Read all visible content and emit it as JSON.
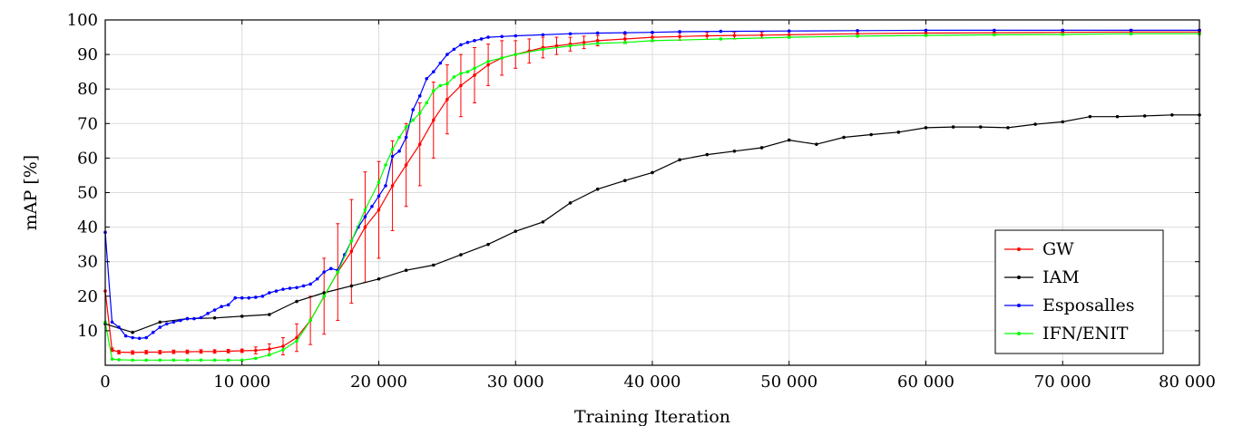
{
  "chart_data": {
    "type": "line",
    "title": "",
    "xlabel": "Training Iteration",
    "ylabel": "mAP [%]",
    "xlim": [
      0,
      80000
    ],
    "ylim": [
      0,
      100
    ],
    "xticks": [
      0,
      10000,
      20000,
      30000,
      40000,
      50000,
      60000,
      70000,
      80000
    ],
    "xtick_labels": [
      "0",
      "10 000",
      "20 000",
      "30 000",
      "40 000",
      "50 000",
      "60 000",
      "70 000",
      "80 000"
    ],
    "yticks": [
      10,
      20,
      30,
      40,
      50,
      60,
      70,
      80,
      90,
      100
    ],
    "ytick_labels": [
      "10",
      "20",
      "30",
      "40",
      "50",
      "60",
      "70",
      "80",
      "90",
      "100"
    ],
    "grid": true,
    "legend_position": "bottom-right",
    "series": [
      {
        "name": "GW",
        "color": "#ff0000",
        "error_bars": true,
        "x": [
          0,
          500,
          1000,
          2000,
          3000,
          4000,
          5000,
          6000,
          7000,
          8000,
          9000,
          10000,
          11000,
          12000,
          13000,
          14000,
          15000,
          16000,
          17000,
          18000,
          19000,
          20000,
          21000,
          22000,
          23000,
          24000,
          25000,
          26000,
          27000,
          28000,
          29000,
          30000,
          31000,
          32000,
          33000,
          34000,
          35000,
          36000,
          38000,
          40000,
          42000,
          44000,
          46000,
          48000,
          50000,
          55000,
          60000,
          65000,
          70000,
          75000,
          80000
        ],
        "y": [
          21.5,
          4.5,
          3.8,
          3.7,
          3.8,
          3.8,
          3.9,
          3.9,
          4.0,
          4.0,
          4.1,
          4.2,
          4.3,
          4.7,
          5.5,
          8,
          13,
          20,
          27,
          33,
          40,
          45,
          52,
          58,
          64,
          71,
          77,
          81,
          84,
          87,
          89,
          90,
          91,
          92,
          92.5,
          93,
          93.5,
          94,
          94.5,
          95,
          95.2,
          95.4,
          95.5,
          95.6,
          95.7,
          96,
          96.2,
          96.3,
          96.4,
          96.5,
          96.5
        ],
        "err": [
          0,
          0.5,
          0.5,
          0.5,
          0.5,
          0.5,
          0.5,
          0.5,
          0.5,
          0.5,
          0.5,
          0.5,
          1,
          1.5,
          2.5,
          4,
          7,
          11,
          14,
          15,
          16,
          14,
          13,
          12,
          12,
          11,
          10,
          9,
          8,
          6,
          5,
          4,
          3.5,
          3,
          2.5,
          2,
          1.8,
          1.5,
          1.3,
          1.2,
          1.1,
          1,
          1,
          0.9,
          0.9,
          0.8,
          0.8,
          0.7,
          0.7,
          0.7,
          0.7
        ]
      },
      {
        "name": "IAM",
        "color": "#000000",
        "error_bars": false,
        "x": [
          0,
          2000,
          4000,
          6000,
          8000,
          10000,
          12000,
          14000,
          16000,
          18000,
          20000,
          22000,
          24000,
          26000,
          28000,
          30000,
          32000,
          34000,
          36000,
          38000,
          40000,
          42000,
          44000,
          46000,
          48000,
          50000,
          52000,
          54000,
          56000,
          58000,
          60000,
          62000,
          64000,
          66000,
          68000,
          70000,
          72000,
          74000,
          76000,
          78000,
          80000
        ],
        "y": [
          12,
          9.5,
          12.5,
          13.5,
          13.7,
          14.2,
          14.7,
          18.5,
          21,
          23,
          25,
          27.5,
          29,
          32,
          35,
          38.8,
          41.5,
          47,
          51,
          53.5,
          55.8,
          59.5,
          61,
          62,
          63,
          65.2,
          64,
          66,
          66.8,
          67.5,
          68.8,
          69,
          69,
          68.8,
          69.8,
          70.5,
          72,
          72,
          72.2,
          72.5,
          72.5
        ]
      },
      {
        "name": "Esposalles",
        "color": "#0000ff",
        "error_bars": false,
        "x": [
          0,
          500,
          1000,
          1500,
          2000,
          2500,
          3000,
          3500,
          4000,
          4500,
          5000,
          5500,
          6000,
          6500,
          7000,
          7500,
          8000,
          8500,
          9000,
          9500,
          10000,
          10500,
          11000,
          11500,
          12000,
          12500,
          13000,
          13500,
          14000,
          14500,
          15000,
          15500,
          16000,
          16500,
          17000,
          17500,
          18000,
          18500,
          19000,
          19500,
          20000,
          20500,
          21000,
          21500,
          22000,
          22500,
          23000,
          23500,
          24000,
          24500,
          25000,
          25500,
          26000,
          26500,
          27000,
          27500,
          28000,
          29000,
          30000,
          32000,
          34000,
          36000,
          38000,
          40000,
          42000,
          45000,
          50000,
          55000,
          60000,
          65000,
          70000,
          75000,
          80000
        ],
        "y": [
          38.5,
          12.5,
          11,
          8.5,
          8.0,
          7.8,
          8.0,
          9.5,
          11,
          12,
          12.5,
          13,
          13.5,
          13.5,
          13.8,
          15,
          16,
          17,
          17.5,
          19.5,
          19.5,
          19.5,
          19.7,
          20,
          21,
          21.5,
          22,
          22.3,
          22.5,
          23,
          23.5,
          25,
          27,
          28,
          27.5,
          32,
          36,
          40,
          43,
          46,
          49,
          52,
          60.5,
          62,
          66,
          74,
          78,
          83,
          85,
          87.5,
          90,
          91.5,
          92.8,
          93.5,
          94,
          94.5,
          95,
          95.2,
          95.4,
          95.7,
          96,
          96.2,
          96.3,
          96.4,
          96.6,
          96.7,
          96.8,
          96.9,
          97,
          97,
          97,
          97,
          97
        ]
      },
      {
        "name": "IFN/ENIT",
        "color": "#00ff00",
        "error_bars": false,
        "x": [
          0,
          500,
          1000,
          2000,
          3000,
          4000,
          5000,
          6000,
          7000,
          8000,
          9000,
          10000,
          11000,
          12000,
          13000,
          14000,
          15000,
          16000,
          17000,
          18000,
          19000,
          20000,
          20500,
          21000,
          21500,
          22000,
          22500,
          23000,
          23500,
          24000,
          24500,
          25000,
          25500,
          26000,
          26500,
          27000,
          28000,
          29000,
          30000,
          32000,
          34000,
          36000,
          38000,
          40000,
          45000,
          50000,
          55000,
          60000,
          65000,
          70000,
          75000,
          80000
        ],
        "y": [
          12.5,
          1.8,
          1.6,
          1.5,
          1.5,
          1.5,
          1.5,
          1.5,
          1.5,
          1.5,
          1.5,
          1.5,
          2,
          3,
          4.5,
          7,
          13,
          20,
          27,
          36,
          45,
          53,
          58,
          62.5,
          66,
          69,
          71,
          73,
          76,
          79.5,
          81,
          81.5,
          83.5,
          84.5,
          85,
          86,
          88,
          89,
          90,
          91.5,
          92.5,
          93.2,
          93.5,
          94,
          94.5,
          95,
          95.3,
          95.5,
          95.7,
          95.8,
          96,
          96
        ]
      }
    ]
  }
}
